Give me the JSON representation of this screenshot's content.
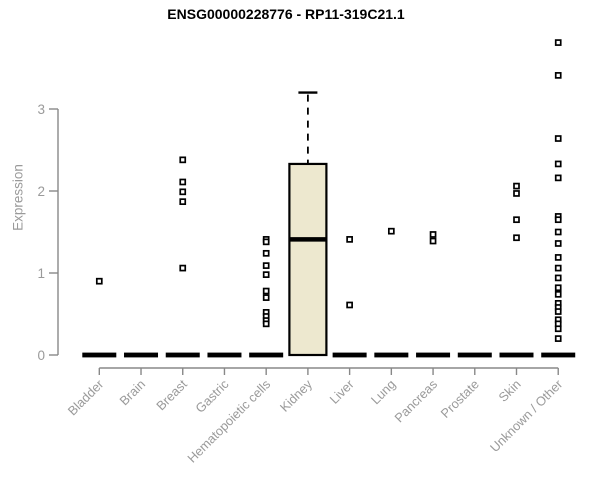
{
  "chart_data": {
    "type": "boxplot",
    "title": "ENSG00000228776 - RP11-319C21.1",
    "ylabel": "Expression",
    "xlabel": "",
    "ylim": [
      0,
      3.9
    ],
    "yticks": [
      0,
      1,
      2,
      3
    ],
    "grid": false,
    "legend": "none",
    "colors": {
      "box_fill": "#ede8cf",
      "box_stroke": "#000000",
      "axis": "#888888",
      "tick_label": "#9a9a9a",
      "marker_fill": "#ffffff",
      "marker_stroke": "#000000"
    },
    "categories": [
      "Bladder",
      "Brain",
      "Breast",
      "Gastric",
      "Hematopoietic cells",
      "Kidney",
      "Liver",
      "Lung",
      "Pancreas",
      "Prostate",
      "Skin",
      "Unknown / Other"
    ],
    "series": [
      {
        "name": "Bladder",
        "box": {
          "low": 0,
          "q1": 0,
          "median": 0,
          "q3": 0,
          "high": 0
        },
        "outliers": [
          0.9
        ]
      },
      {
        "name": "Brain",
        "box": {
          "low": 0,
          "q1": 0,
          "median": 0,
          "q3": 0,
          "high": 0
        },
        "outliers": []
      },
      {
        "name": "Breast",
        "box": {
          "low": 0,
          "q1": 0,
          "median": 0,
          "q3": 0,
          "high": 0
        },
        "outliers": [
          2.38,
          2.11,
          1.99,
          1.87,
          1.06
        ]
      },
      {
        "name": "Gastric",
        "box": {
          "low": 0,
          "q1": 0,
          "median": 0,
          "q3": 0,
          "high": 0
        },
        "outliers": []
      },
      {
        "name": "Hematopoietic cells",
        "box": {
          "low": 0,
          "q1": 0,
          "median": 0,
          "q3": 0,
          "high": 0
        },
        "outliers": [
          1.41,
          1.38,
          1.24,
          1.09,
          0.98,
          0.78,
          0.7,
          0.52,
          0.47,
          0.42,
          0.38
        ]
      },
      {
        "name": "Kidney",
        "box": {
          "low": 0,
          "q1": 0,
          "median": 1.41,
          "q3": 2.33,
          "high": 3.2
        },
        "outliers": []
      },
      {
        "name": "Liver",
        "box": {
          "low": 0,
          "q1": 0,
          "median": 0,
          "q3": 0,
          "high": 0
        },
        "outliers": [
          1.41,
          0.61
        ]
      },
      {
        "name": "Lung",
        "box": {
          "low": 0,
          "q1": 0,
          "median": 0,
          "q3": 0,
          "high": 0
        },
        "outliers": [
          1.51
        ]
      },
      {
        "name": "Pancreas",
        "box": {
          "low": 0,
          "q1": 0,
          "median": 0,
          "q3": 0,
          "high": 0
        },
        "outliers": [
          1.47,
          1.39
        ]
      },
      {
        "name": "Prostate",
        "box": {
          "low": 0,
          "q1": 0,
          "median": 0,
          "q3": 0,
          "high": 0
        },
        "outliers": []
      },
      {
        "name": "Skin",
        "box": {
          "low": 0,
          "q1": 0,
          "median": 0,
          "q3": 0,
          "high": 0
        },
        "outliers": [
          2.06,
          1.97,
          1.65,
          1.43
        ]
      },
      {
        "name": "Unknown / Other",
        "box": {
          "low": 0,
          "q1": 0,
          "median": 0,
          "q3": 0,
          "high": 0
        },
        "outliers": [
          3.81,
          3.41,
          2.64,
          2.33,
          2.16,
          1.69,
          1.65,
          1.5,
          1.36,
          1.19,
          1.06,
          0.94,
          0.82,
          0.74,
          0.63,
          0.58,
          0.53,
          0.43,
          0.38,
          0.32,
          0.2
        ]
      }
    ]
  }
}
